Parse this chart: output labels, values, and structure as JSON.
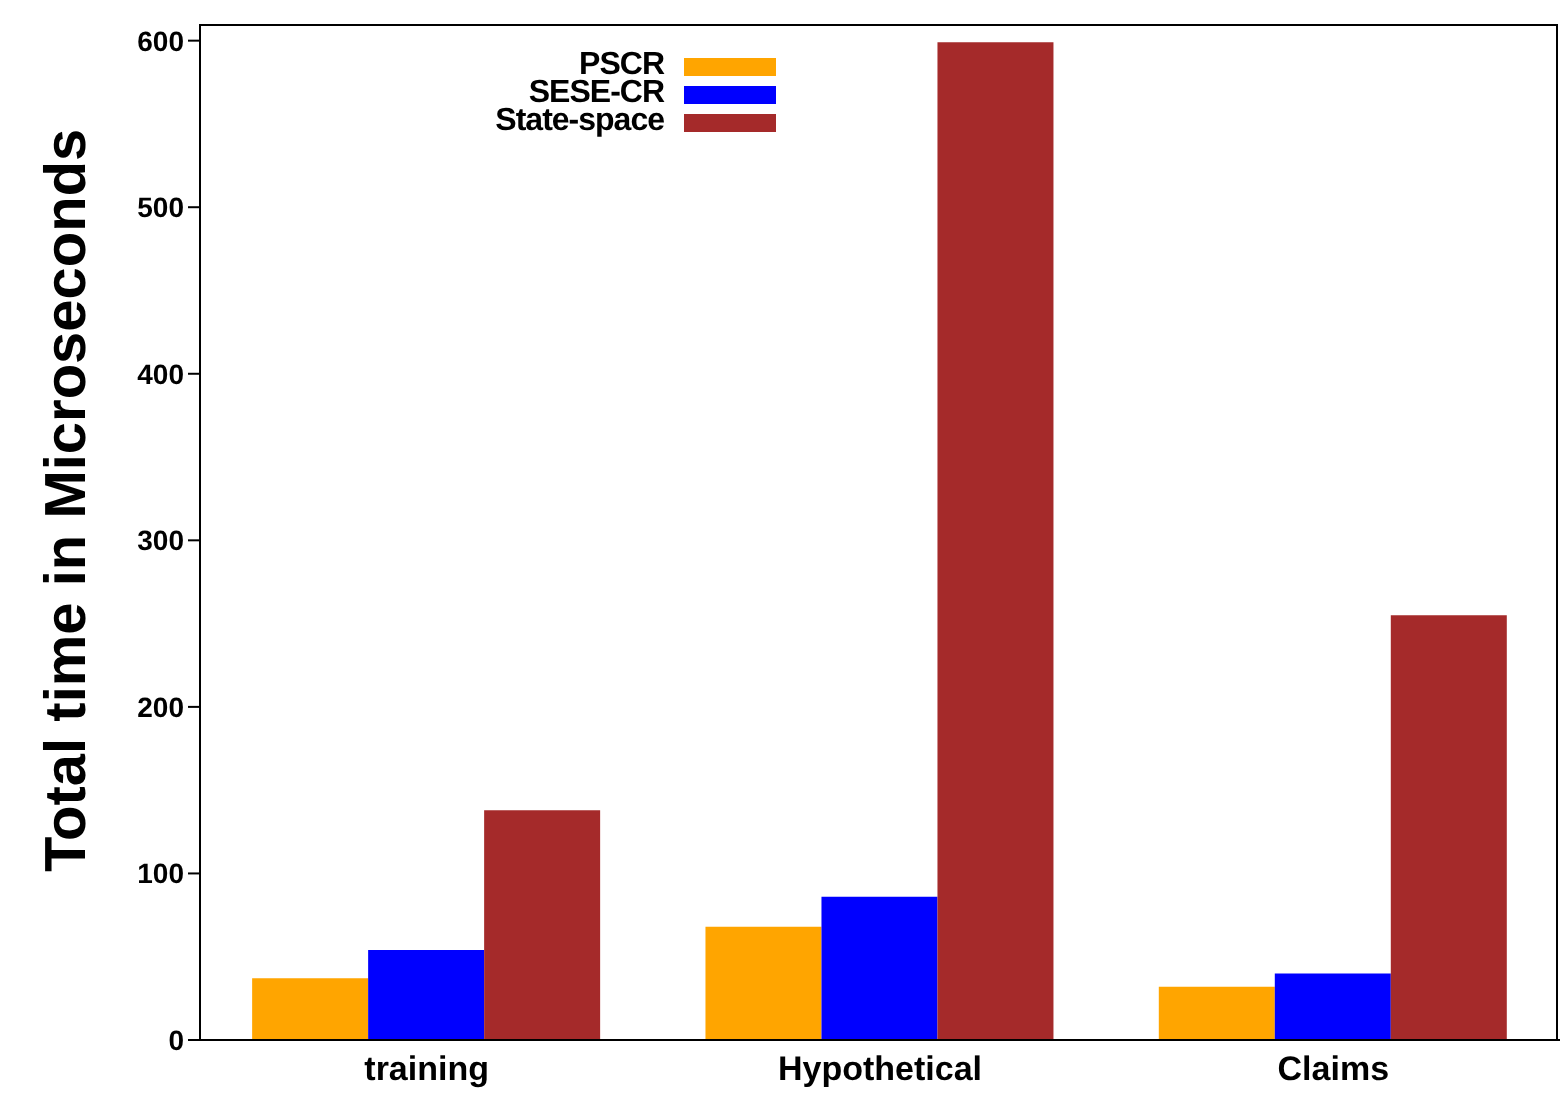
{
  "chart_data": {
    "type": "bar",
    "ylabel": "Total time in Microseconds",
    "categories": [
      "training",
      "Hypothetical",
      "Claims"
    ],
    "series": [
      {
        "name": "PSCR",
        "color": "#ffa500",
        "values": [
          37,
          68,
          32
        ]
      },
      {
        "name": "SESE-CR",
        "color": "#0000ff",
        "values": [
          54,
          86,
          40
        ]
      },
      {
        "name": "State-space",
        "color": "#a52a2a",
        "values": [
          138,
          599,
          255
        ]
      }
    ],
    "ylim": [
      0,
      610
    ],
    "yticks": [
      0,
      100,
      200,
      300,
      400,
      500,
      600
    ],
    "grid": false,
    "legend": "top"
  }
}
